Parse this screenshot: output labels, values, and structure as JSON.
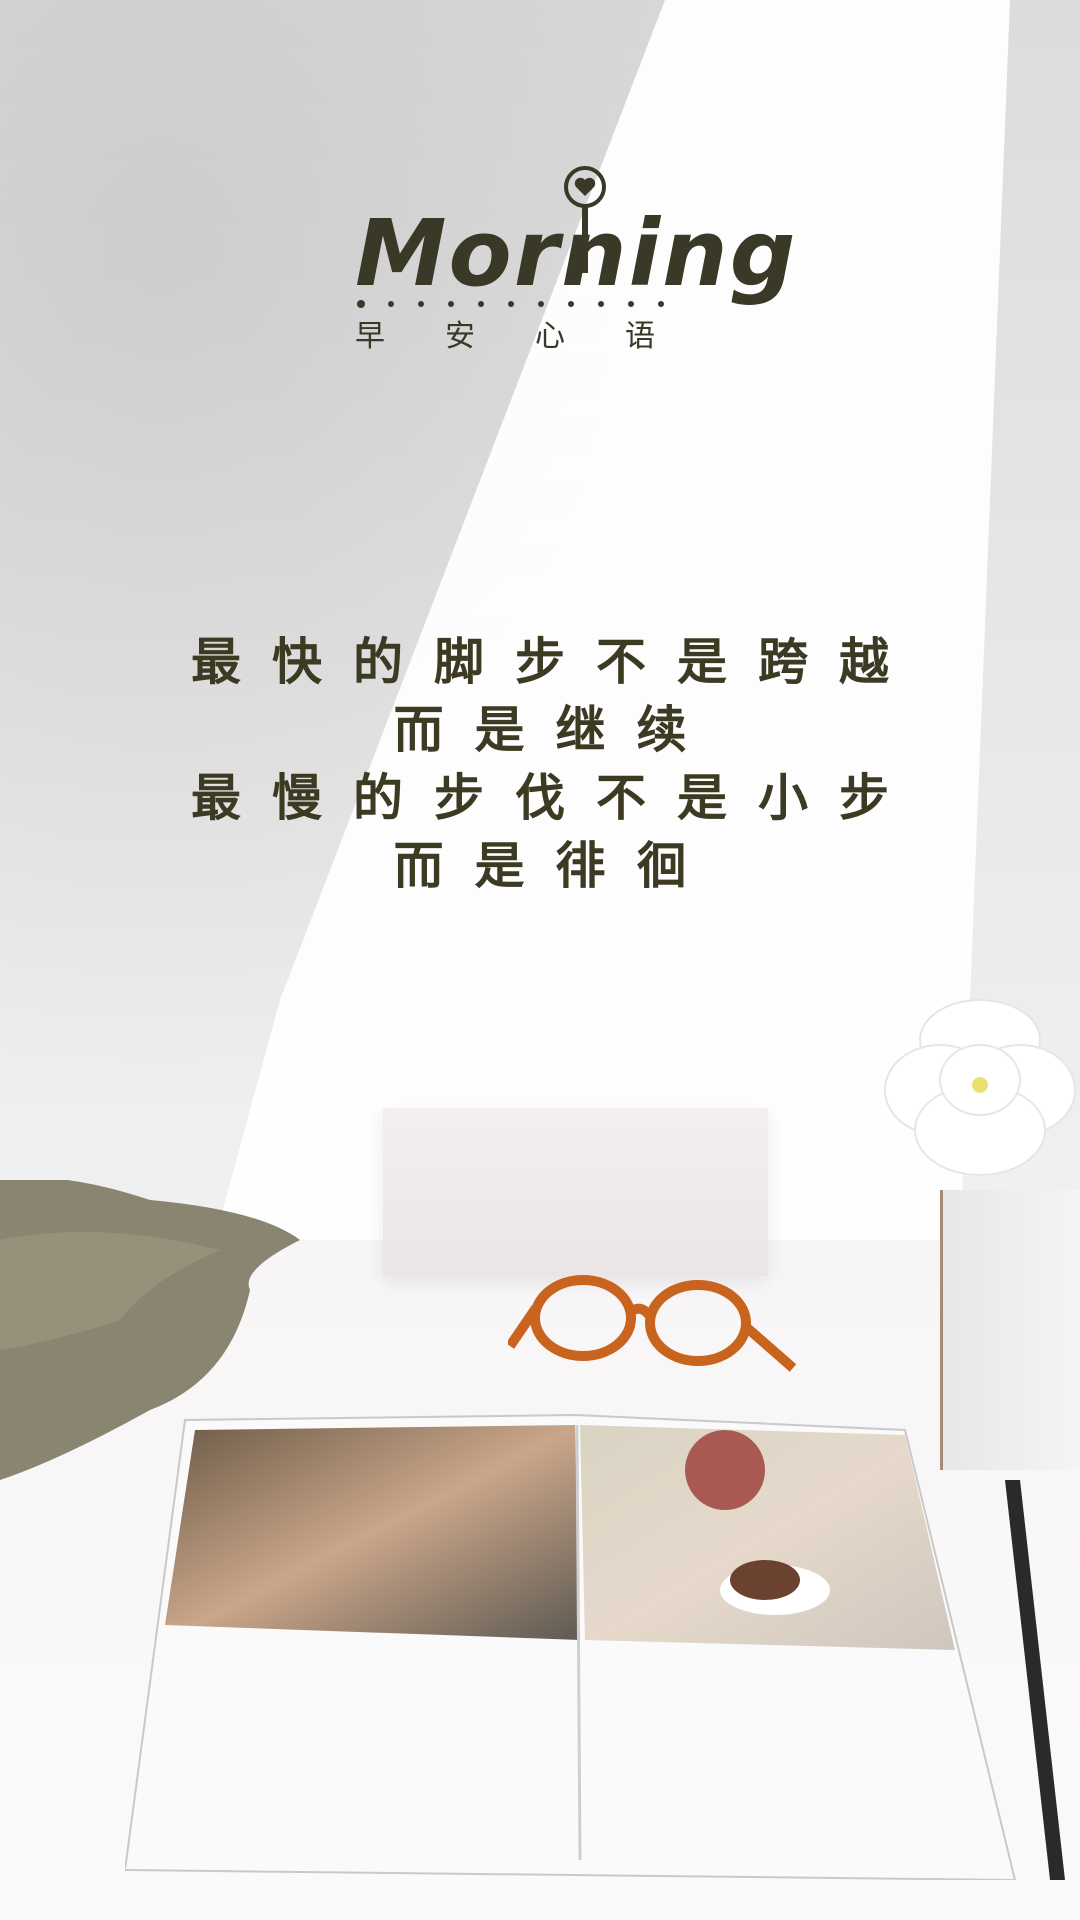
{
  "logo": {
    "word": "Morning",
    "subtitle": [
      "早",
      "安",
      "心",
      "语"
    ]
  },
  "quote": {
    "lines": [
      "最快的脚步不是跨越",
      "而是继续",
      "最慢的步伐不是小步",
      "而是徘徊"
    ]
  },
  "colors": {
    "text": "#3c3a22",
    "glasses": "#c8641e",
    "cloth": "#8a8570"
  },
  "icons": [
    "heart-pin-icon"
  ]
}
